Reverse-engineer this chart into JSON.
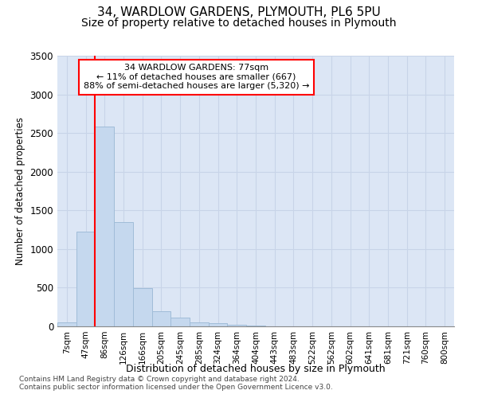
{
  "title1": "34, WARDLOW GARDENS, PLYMOUTH, PL6 5PU",
  "title2": "Size of property relative to detached houses in Plymouth",
  "xlabel": "Distribution of detached houses by size in Plymouth",
  "ylabel": "Number of detached properties",
  "bar_labels": [
    "7sqm",
    "47sqm",
    "86sqm",
    "126sqm",
    "166sqm",
    "205sqm",
    "245sqm",
    "285sqm",
    "324sqm",
    "364sqm",
    "404sqm",
    "443sqm",
    "483sqm",
    "522sqm",
    "562sqm",
    "602sqm",
    "641sqm",
    "681sqm",
    "721sqm",
    "760sqm",
    "800sqm"
  ],
  "bar_values": [
    50,
    1220,
    2580,
    1350,
    490,
    200,
    110,
    55,
    40,
    20,
    10,
    5,
    3,
    0,
    0,
    0,
    0,
    0,
    0,
    0,
    0
  ],
  "bar_color": "#c5d8ee",
  "bar_edgecolor": "#a0bcd8",
  "bar_linewidth": 0.7,
  "ylim": [
    0,
    3500
  ],
  "yticks": [
    0,
    500,
    1000,
    1500,
    2000,
    2500,
    3000,
    3500
  ],
  "grid_color": "#c8d4e8",
  "background_color": "#dce6f5",
  "red_line_index": 2.0,
  "annotation_text_line1": "34 WARDLOW GARDENS: 77sqm",
  "annotation_text_line2": "← 11% of detached houses are smaller (667)",
  "annotation_text_line3": "88% of semi-detached houses are larger (5,320) →",
  "footnote1": "Contains HM Land Registry data © Crown copyright and database right 2024.",
  "footnote2": "Contains public sector information licensed under the Open Government Licence v3.0.",
  "title1_fontsize": 11,
  "title2_fontsize": 10
}
